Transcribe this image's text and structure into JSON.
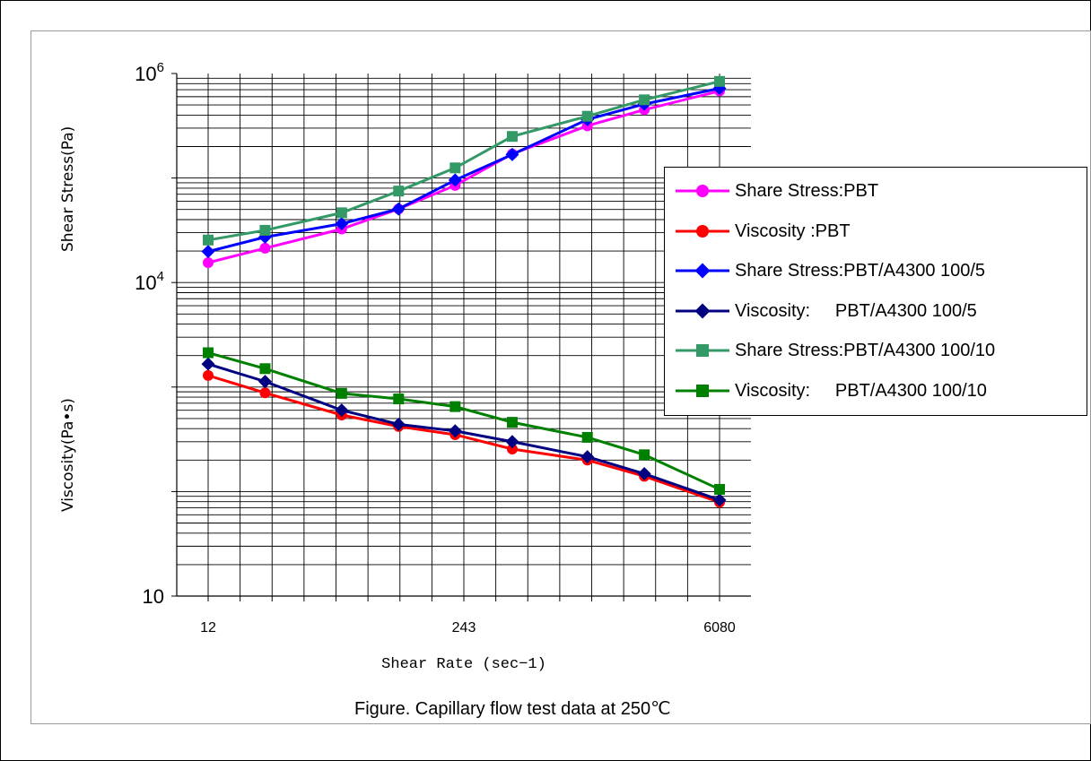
{
  "chart_data": {
    "type": "line",
    "caption": "Figure. Capillary flow test data at 250℃",
    "xlabel": "Shear Rate (sec−1)",
    "ylabel_upper": "Shear Stress(Pa)",
    "ylabel_lower": "Viscosity(Pa•s)",
    "x_scale": "log",
    "y_scale": "log",
    "xlim": [
      12,
      6080
    ],
    "ylim": [
      10,
      1000000
    ],
    "grid": true,
    "legend_position": "right",
    "x_tick_labels": [
      "12",
      "243",
      "6080"
    ],
    "y_tick_labels": [
      {
        "base": "10",
        "exp": "6"
      },
      {
        "base": "10",
        "exp": "4"
      },
      {
        "base": "10",
        "exp": ""
      }
    ],
    "x": [
      12,
      24,
      61,
      122,
      243,
      487,
      1216,
      2432,
      6080
    ],
    "series": [
      {
        "name": "Share Stress:PBT",
        "color": "#ff00ff",
        "marker": "circle",
        "values": [
          15500,
          21300,
          32500,
          50600,
          85000,
          170000,
          316000,
          450000,
          680000
        ]
      },
      {
        "name": "Viscosity :PBT",
        "color": "#ff0000",
        "marker": "circle",
        "values": [
          1290,
          880,
          540,
          420,
          350,
          255,
          200,
          140,
          79
        ]
      },
      {
        "name": "Share Stress:PBT/A4300 100/5",
        "color": "#0000ff",
        "marker": "diamond",
        "values": [
          19800,
          27200,
          36500,
          50600,
          95500,
          168000,
          363000,
          510000,
          720000
        ]
      },
      {
        "name": "Viscosity:     PBT/A4300 100/5",
        "color": "#000080",
        "marker": "diamond",
        "values": [
          1660,
          1130,
          600,
          440,
          380,
          300,
          215,
          148,
          83
        ]
      },
      {
        "name": "Share Stress:PBT/A4300 100/10",
        "color": "#339966",
        "marker": "square",
        "values": [
          25500,
          31600,
          46500,
          75000,
          125000,
          250000,
          390000,
          560000,
          840000
        ]
      },
      {
        "name": "Viscosity:     PBT/A4300 100/10",
        "color": "#008000",
        "marker": "square",
        "values": [
          2130,
          1500,
          870,
          770,
          650,
          460,
          330,
          225,
          105
        ]
      }
    ]
  }
}
